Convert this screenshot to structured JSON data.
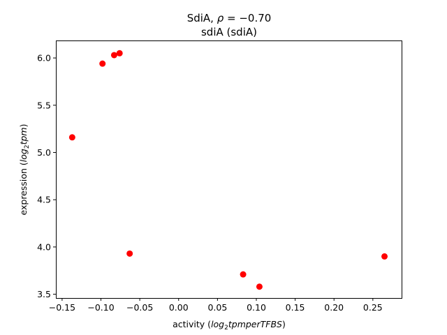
{
  "chart_data": {
    "type": "scatter",
    "title": {
      "prefix": "SdiA, ",
      "rho_symbol": "ρ",
      "rho_text": " = −0.70",
      "subtitle": "sdiA (sdiA)"
    },
    "xlabel": {
      "prefix": "activity (",
      "italic_a": "log",
      "sub": "2",
      "italic_b": "tpmperTFBS",
      "suffix": ")"
    },
    "ylabel": {
      "prefix": "expression (",
      "italic_a": "log",
      "sub": "2",
      "italic_b": "tpm",
      "suffix": ")"
    },
    "xlim": [
      -0.158,
      0.287
    ],
    "ylim": [
      3.46,
      6.185
    ],
    "xticks": [
      {
        "value": -0.15,
        "label": "−0.15"
      },
      {
        "value": -0.1,
        "label": "−0.10"
      },
      {
        "value": -0.05,
        "label": "−0.05"
      },
      {
        "value": 0.0,
        "label": "0.00"
      },
      {
        "value": 0.05,
        "label": "0.05"
      },
      {
        "value": 0.1,
        "label": "0.10"
      },
      {
        "value": 0.15,
        "label": "0.15"
      },
      {
        "value": 0.2,
        "label": "0.20"
      },
      {
        "value": 0.25,
        "label": "0.25"
      }
    ],
    "yticks": [
      {
        "value": 3.5,
        "label": "3.5"
      },
      {
        "value": 4.0,
        "label": "4.0"
      },
      {
        "value": 4.5,
        "label": "4.5"
      },
      {
        "value": 5.0,
        "label": "5.0"
      },
      {
        "value": 5.5,
        "label": "5.5"
      },
      {
        "value": 6.0,
        "label": "6.0"
      }
    ],
    "points": [
      {
        "x": -0.137,
        "y": 5.16
      },
      {
        "x": -0.098,
        "y": 5.94
      },
      {
        "x": -0.083,
        "y": 6.03
      },
      {
        "x": -0.076,
        "y": 6.05
      },
      {
        "x": -0.063,
        "y": 3.93
      },
      {
        "x": 0.083,
        "y": 3.71
      },
      {
        "x": 0.104,
        "y": 3.58
      },
      {
        "x": 0.265,
        "y": 3.9
      }
    ],
    "marker_color": "#ff0000",
    "grid": false,
    "legend": "none"
  }
}
